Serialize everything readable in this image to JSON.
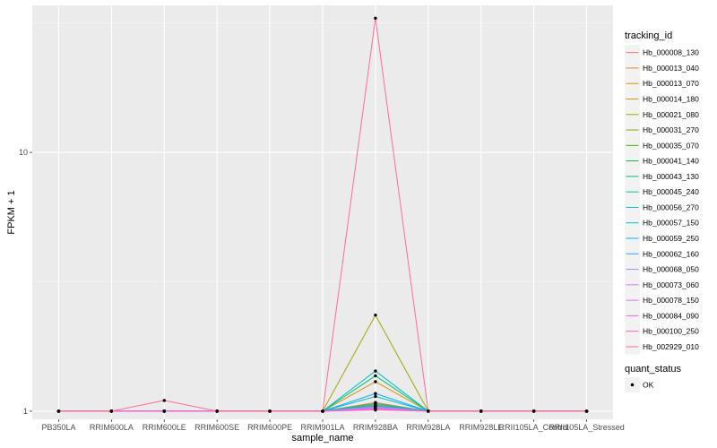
{
  "chart_data": {
    "type": "line",
    "xlabel": "sample_name",
    "ylabel": "FPKM + 1",
    "y_scale": "log10",
    "ylim": [
      0.93,
      37
    ],
    "y_ticks": [
      1,
      10
    ],
    "y_tick_labels": [
      "1",
      "10"
    ],
    "grid": true,
    "legend_placement": "right",
    "categories": [
      "PB350LA",
      "RRIM600LA",
      "RRIM600LE",
      "RRIM600SE",
      "RRIM600PE",
      "RRIM901LA",
      "RRIM928BA",
      "RRIM928LA",
      "RRIM928LE",
      "RRII105LA_Control",
      "RRII105LA_Stressed"
    ],
    "legend_title": "tracking_id",
    "quant_status_title": "quant_status",
    "quant_status_label": "OK",
    "series": [
      {
        "name": "Hb_000008_130",
        "color": "#F8766D",
        "values": [
          1,
          1,
          1,
          1,
          1,
          1,
          1.03,
          1,
          1,
          1,
          1
        ]
      },
      {
        "name": "Hb_000013_040",
        "color": "#EA8331",
        "values": [
          1,
          1,
          1,
          1,
          1,
          1,
          1.08,
          1,
          1,
          1,
          1
        ]
      },
      {
        "name": "Hb_000013_070",
        "color": "#D89000",
        "values": [
          1,
          1,
          1,
          1,
          1,
          1,
          1.3,
          1,
          1,
          1,
          1
        ]
      },
      {
        "name": "Hb_000014_180",
        "color": "#C09B00",
        "values": [
          1,
          1,
          1,
          1,
          1,
          1,
          1.05,
          1,
          1,
          1,
          1
        ]
      },
      {
        "name": "Hb_000021_080",
        "color": "#A3A500",
        "values": [
          1,
          1,
          1,
          1,
          1,
          1,
          2.35,
          1,
          1,
          1,
          1
        ]
      },
      {
        "name": "Hb_000031_270",
        "color": "#7CAE00",
        "values": [
          1,
          1,
          1,
          1,
          1,
          1,
          1.06,
          1,
          1,
          1,
          1
        ]
      },
      {
        "name": "Hb_000035_070",
        "color": "#39B600",
        "values": [
          1,
          1,
          1,
          1,
          1,
          1,
          1.04,
          1,
          1,
          1,
          1
        ]
      },
      {
        "name": "Hb_000041_140",
        "color": "#00BB4E",
        "values": [
          1,
          1,
          1,
          1,
          1,
          1,
          1.05,
          1,
          1,
          1,
          1
        ]
      },
      {
        "name": "Hb_000043_130",
        "color": "#00BF7D",
        "values": [
          1,
          1,
          1,
          1,
          1,
          1,
          1.37,
          1,
          1,
          1,
          1
        ]
      },
      {
        "name": "Hb_000045_240",
        "color": "#00C1A3",
        "values": [
          1,
          1,
          1,
          1,
          1,
          1,
          1.07,
          1,
          1,
          1,
          1
        ]
      },
      {
        "name": "Hb_000056_270",
        "color": "#00BFC4",
        "values": [
          1,
          1,
          1,
          1,
          1,
          1,
          1.43,
          1,
          1,
          1,
          1
        ]
      },
      {
        "name": "Hb_000057_150",
        "color": "#00BAE0",
        "values": [
          1,
          1,
          1,
          1,
          1,
          1,
          1.14,
          1,
          1,
          1,
          1
        ]
      },
      {
        "name": "Hb_000059_250",
        "color": "#00B0F6",
        "values": [
          1,
          1,
          1,
          1,
          1,
          1,
          1.17,
          1,
          1,
          1,
          1
        ]
      },
      {
        "name": "Hb_000062_160",
        "color": "#35A2FF",
        "values": [
          1,
          1,
          1,
          1,
          1,
          1,
          1.05,
          1,
          1,
          1,
          1
        ]
      },
      {
        "name": "Hb_000068_050",
        "color": "#9590FF",
        "values": [
          1,
          1,
          1,
          1,
          1,
          1,
          1.04,
          1,
          1,
          1,
          1
        ]
      },
      {
        "name": "Hb_000073_060",
        "color": "#C77CFF",
        "values": [
          1,
          1,
          1,
          1,
          1,
          1,
          1.03,
          1,
          1,
          1,
          1
        ]
      },
      {
        "name": "Hb_000078_150",
        "color": "#E76BF3",
        "values": [
          1,
          1,
          1,
          1,
          1,
          1,
          1.02,
          1,
          1,
          1,
          1
        ]
      },
      {
        "name": "Hb_000084_090",
        "color": "#FA62DB",
        "values": [
          1,
          1,
          1,
          1,
          1,
          1,
          1.02,
          1,
          1,
          1,
          1
        ]
      },
      {
        "name": "Hb_000100_250",
        "color": "#FF62BC",
        "values": [
          1,
          1,
          1,
          1,
          1,
          1,
          1.01,
          1,
          1,
          1,
          1
        ]
      },
      {
        "name": "Hb_002929_010",
        "color": "#FF6C91",
        "values": [
          1,
          1,
          1.1,
          1,
          1,
          1,
          33,
          1,
          1,
          1,
          1
        ]
      }
    ]
  }
}
